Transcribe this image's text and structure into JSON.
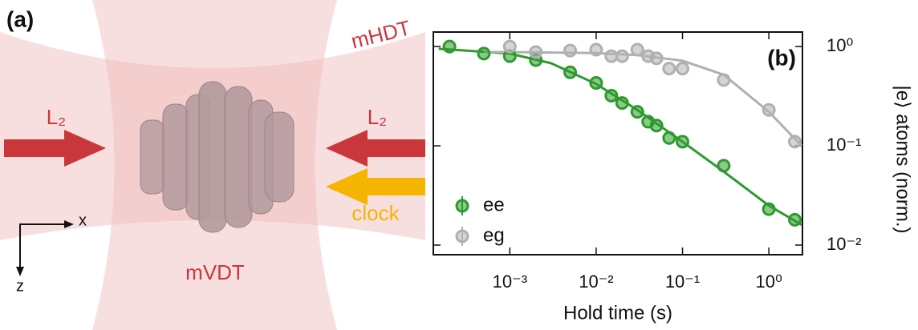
{
  "diagram": {
    "panel_label": "(a)",
    "horizontal_beam": "mHDT",
    "vertical_beam": "mVDT",
    "left_laser": "L₂",
    "right_laser": "L₂",
    "clock_laser": "clock",
    "axis_x": "x",
    "axis_z": "z"
  },
  "chart_data": {
    "type": "scatter",
    "panel_label": "(b)",
    "xlabel": "Hold time (s)",
    "ylabel": "|e⟩ atoms (norm.)",
    "xscale": "log",
    "yscale": "log",
    "xlim": [
      0.00013,
      2.45
    ],
    "ylim": [
      0.008,
      1.4
    ],
    "xticks": [
      {
        "value": 0.001,
        "label": "10⁻³"
      },
      {
        "value": 0.01,
        "label": "10⁻²"
      },
      {
        "value": 0.1,
        "label": "10⁻¹"
      },
      {
        "value": 1,
        "label": "10⁰"
      }
    ],
    "yticks": [
      {
        "value": 1,
        "label": "10⁰"
      },
      {
        "value": 0.1,
        "label": "10⁻¹"
      },
      {
        "value": 0.01,
        "label": "10⁻²"
      }
    ],
    "legend": "lower left",
    "series": [
      {
        "name": "ee",
        "color": "#2e9a2e",
        "x": [
          0.0002,
          0.0005,
          0.001,
          0.002,
          0.005,
          0.01,
          0.015,
          0.02,
          0.03,
          0.04,
          0.05,
          0.07,
          0.1,
          0.3,
          1,
          2
        ],
        "values": [
          1.0,
          0.85,
          0.8,
          0.73,
          0.55,
          0.43,
          0.32,
          0.27,
          0.22,
          0.175,
          0.16,
          0.12,
          0.11,
          0.063,
          0.023,
          0.018
        ]
      },
      {
        "name": "eg",
        "color": "#b0b0b0",
        "x": [
          0.001,
          0.002,
          0.005,
          0.01,
          0.015,
          0.02,
          0.03,
          0.04,
          0.05,
          0.07,
          0.1,
          0.3,
          1,
          2
        ],
        "values": [
          1.0,
          0.88,
          0.91,
          0.93,
          0.8,
          0.8,
          0.93,
          0.8,
          0.76,
          0.6,
          0.6,
          0.46,
          0.23,
          0.11
        ]
      }
    ],
    "fits": [
      {
        "color": "#2e9a2e",
        "x": [
          0.00015,
          0.001,
          0.003,
          0.01,
          0.03,
          0.1,
          0.3,
          1,
          2.4
        ],
        "values": [
          0.95,
          0.85,
          0.68,
          0.42,
          0.23,
          0.11,
          0.055,
          0.025,
          0.016
        ]
      },
      {
        "color": "#b0b0b0",
        "x": [
          0.0005,
          0.001,
          0.01,
          0.03,
          0.1,
          0.3,
          1,
          2.4
        ],
        "values": [
          0.88,
          0.88,
          0.86,
          0.82,
          0.72,
          0.52,
          0.22,
          0.1
        ]
      }
    ]
  }
}
